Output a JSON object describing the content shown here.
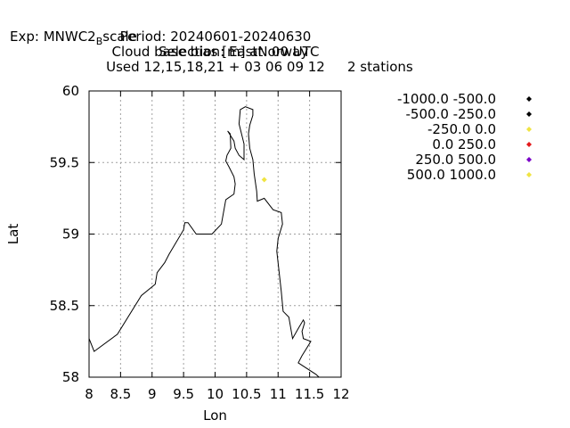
{
  "title": {
    "exp_prefix": "Exp: MNWC2",
    "exp_sub": "B",
    "exp_suffix": "scale",
    "selection": "Selection: EastNorway",
    "stations": "2 stations",
    "period": "Period: 20240601-20240630",
    "quantity": "Cloud base bias [m] at  00 UTC",
    "used": "Used 12,15,18,21 + 03 06 09 12"
  },
  "chart_data": {
    "type": "scatter",
    "xlabel": "Lon",
    "ylabel": "Lat",
    "xlim": [
      8,
      12
    ],
    "ylim": [
      58,
      60
    ],
    "x_ticks": [
      "8",
      "8.5",
      "9",
      "9.5",
      "10",
      "10.5",
      "11",
      "11.5",
      "12"
    ],
    "y_ticks": [
      "58",
      "58.5",
      "59",
      "59.5",
      "60"
    ],
    "grid": true,
    "legend_position": "right",
    "legend": [
      {
        "label": "-1000.0 -500.0",
        "color": "#000000"
      },
      {
        "label": "-500.0 -250.0",
        "color": "#000000"
      },
      {
        "label": "-250.0 0.0",
        "color": "#f0e442"
      },
      {
        "label": "0.0 250.0",
        "color": "#e41a1c"
      },
      {
        "label": "250.0 500.0",
        "color": "#7b00c8"
      },
      {
        "label": "500.0 1000.0",
        "color": "#f0e442"
      }
    ],
    "points": [
      {
        "lon": 10.78,
        "lat": 59.38,
        "color": "#f0e442"
      }
    ],
    "coastline": [
      [
        8.0,
        58.27
      ],
      [
        8.08,
        58.18
      ],
      [
        8.45,
        58.3
      ],
      [
        8.83,
        58.57
      ],
      [
        9.05,
        58.65
      ],
      [
        9.08,
        58.73
      ],
      [
        9.2,
        58.8
      ],
      [
        9.27,
        58.86
      ],
      [
        9.5,
        59.03
      ],
      [
        9.52,
        59.08
      ],
      [
        9.57,
        59.08
      ],
      [
        9.7,
        59.0
      ],
      [
        9.95,
        59.0
      ],
      [
        10.1,
        59.07
      ],
      [
        10.17,
        59.24
      ],
      [
        10.3,
        59.28
      ],
      [
        10.32,
        59.35
      ],
      [
        10.3,
        59.4
      ],
      [
        10.22,
        59.47
      ],
      [
        10.17,
        59.51
      ],
      [
        10.19,
        59.55
      ],
      [
        10.25,
        59.6
      ],
      [
        10.24,
        59.7
      ],
      [
        10.2,
        59.72
      ],
      [
        10.3,
        59.65
      ],
      [
        10.32,
        59.6
      ],
      [
        10.38,
        59.55
      ],
      [
        10.46,
        59.52
      ],
      [
        10.46,
        59.63
      ],
      [
        10.42,
        59.7
      ],
      [
        10.38,
        59.77
      ],
      [
        10.4,
        59.87
      ],
      [
        10.48,
        59.89
      ],
      [
        10.6,
        59.87
      ],
      [
        10.6,
        59.83
      ],
      [
        10.55,
        59.76
      ],
      [
        10.53,
        59.7
      ],
      [
        10.55,
        59.6
      ],
      [
        10.6,
        59.52
      ],
      [
        10.62,
        59.42
      ],
      [
        10.66,
        59.3
      ],
      [
        10.67,
        59.23
      ],
      [
        10.78,
        59.25
      ],
      [
        10.92,
        59.17
      ],
      [
        11.05,
        59.15
      ],
      [
        11.07,
        59.07
      ],
      [
        11.0,
        58.97
      ],
      [
        10.98,
        58.88
      ],
      [
        11.05,
        58.6
      ],
      [
        11.08,
        58.46
      ],
      [
        11.17,
        58.42
      ],
      [
        11.23,
        58.27
      ],
      [
        11.32,
        58.34
      ],
      [
        11.4,
        58.4
      ],
      [
        11.42,
        58.38
      ],
      [
        11.38,
        58.32
      ],
      [
        11.4,
        58.27
      ],
      [
        11.52,
        58.25
      ],
      [
        11.45,
        58.2
      ],
      [
        11.38,
        58.15
      ],
      [
        11.32,
        58.1
      ],
      [
        11.6,
        58.02
      ],
      [
        11.65,
        57.94
      ]
    ]
  }
}
